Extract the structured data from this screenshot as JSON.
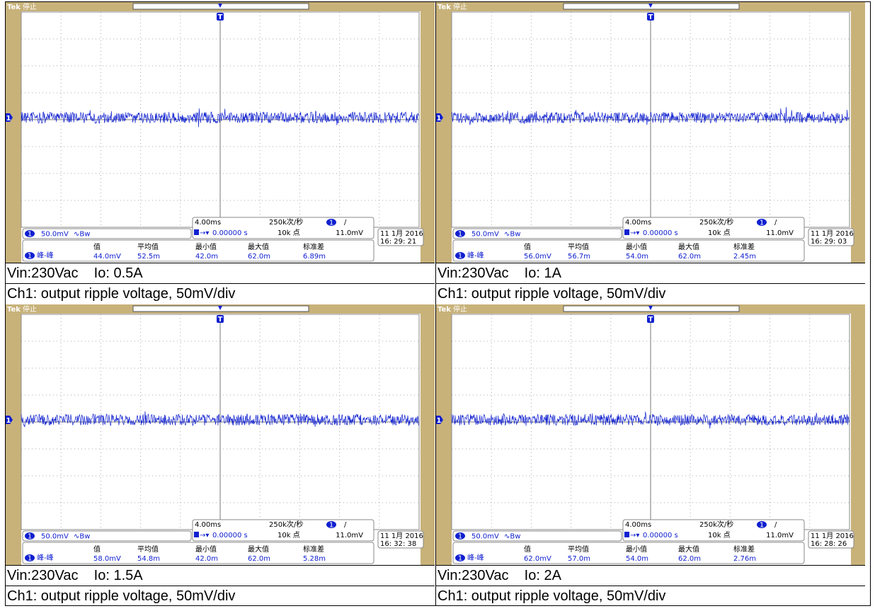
{
  "panels": [
    {
      "brand": "Tek",
      "state": "停止",
      "trigger_marker": "T",
      "channel_marker": "1",
      "channel": "1",
      "scale": "50.0mV",
      "coupling": "∿Bw",
      "timebase": "4.00ms",
      "sample_rate": "250k次/秒",
      "trigger_source": "1",
      "trigger_slope": "/",
      "trigger_pos": "0.00000 s",
      "record": "10k 点",
      "trigger_level": "11.0mV",
      "date": "11 1月  2016",
      "time": "16: 29: 21",
      "measure_source": "1",
      "measure_name": "峰-峰",
      "measure_headers": [
        "值",
        "平均值",
        "最小值",
        "最大值",
        "标准差"
      ],
      "measure_values": [
        "44.0mV",
        "52.5m",
        "42.0m",
        "62.0m",
        "6.89m"
      ],
      "caption_line1": "Vin:230Vac    Io: 0.5A",
      "caption_line2": "Ch1: output ripple voltage, 50mV/div"
    },
    {
      "brand": "Tek",
      "state": "停止",
      "trigger_marker": "T",
      "channel_marker": "1",
      "channel": "1",
      "scale": "50.0mV",
      "coupling": "∿Bw",
      "timebase": "4.00ms",
      "sample_rate": "250k次/秒",
      "trigger_source": "1",
      "trigger_slope": "/",
      "trigger_pos": "0.00000 s",
      "record": "10k 点",
      "trigger_level": "11.0mV",
      "date": "11 1月  2016",
      "time": "16: 29: 03",
      "measure_source": "1",
      "measure_name": "峰-峰",
      "measure_headers": [
        "值",
        "平均值",
        "最小值",
        "最大值",
        "标准差"
      ],
      "measure_values": [
        "56.0mV",
        "56.7m",
        "54.0m",
        "62.0m",
        "2.45m"
      ],
      "caption_line1": "Vin:230Vac    Io: 1A",
      "caption_line2": "Ch1: output ripple voltage, 50mV/div"
    },
    {
      "brand": "Tek",
      "state": "停止",
      "trigger_marker": "T",
      "channel_marker": "1",
      "channel": "1",
      "scale": "50.0mV",
      "coupling": "∿Bw",
      "timebase": "4.00ms",
      "sample_rate": "250k次/秒",
      "trigger_source": "1",
      "trigger_slope": "/",
      "trigger_pos": "0.00000 s",
      "record": "10k 点",
      "trigger_level": "11.0mV",
      "date": "11 1月  2016",
      "time": "16: 32: 38",
      "measure_source": "1",
      "measure_name": "峰-峰",
      "measure_headers": [
        "值",
        "平均值",
        "最小值",
        "最大值",
        "标准差"
      ],
      "measure_values": [
        "58.0mV",
        "54.8m",
        "42.0m",
        "62.0m",
        "5.28m"
      ],
      "caption_line1": "Vin:230Vac    Io: 1.5A",
      "caption_line2": "Ch1: output ripple voltage, 50mV/div"
    },
    {
      "brand": "Tek",
      "state": "停止",
      "trigger_marker": "T",
      "channel_marker": "1",
      "channel": "1",
      "scale": "50.0mV",
      "coupling": "∿Bw",
      "timebase": "4.00ms",
      "sample_rate": "250k次/秒",
      "trigger_source": "1",
      "trigger_slope": "/",
      "trigger_pos": "0.00000 s",
      "record": "10k 点",
      "trigger_level": "11.0mV",
      "date": "11 1月  2016",
      "time": "16: 28: 26",
      "measure_source": "1",
      "measure_name": "峰-峰",
      "measure_headers": [
        "值",
        "平均值",
        "最小值",
        "最大值",
        "标准差"
      ],
      "measure_values": [
        "62.0mV",
        "57.0m",
        "54.0m",
        "62.0m",
        "2.76m"
      ],
      "caption_line1": "Vin:230Vac    Io: 2A",
      "caption_line2": "Ch1: output ripple voltage, 50mV/div"
    }
  ]
}
